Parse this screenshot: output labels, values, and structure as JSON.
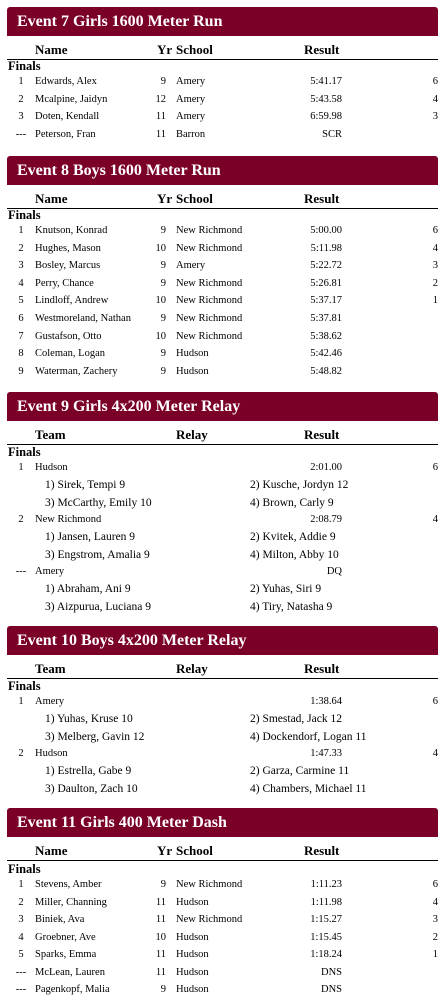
{
  "headers": {
    "name": "Name",
    "yr": "Yr",
    "school": "School",
    "result": "Result",
    "team": "Team",
    "relay": "Relay"
  },
  "finals_label": "Finals",
  "events": [
    {
      "title": "Event 7  Girls 1600 Meter Run",
      "rows": [
        {
          "place": "1",
          "name": "Edwards, Alex",
          "yr": "9",
          "school": "Amery",
          "result": "5:41.17",
          "points": "6"
        },
        {
          "place": "2",
          "name": "Mcalpine, Jaidyn",
          "yr": "12",
          "school": "Amery",
          "result": "5:43.58",
          "points": "4"
        },
        {
          "place": "3",
          "name": "Doten, Kendall",
          "yr": "11",
          "school": "Amery",
          "result": "6:59.98",
          "points": "3"
        },
        {
          "place": "---",
          "name": "Peterson, Fran",
          "yr": "11",
          "school": "Barron",
          "result": "SCR",
          "points": ""
        }
      ]
    },
    {
      "title": "Event 8  Boys 1600 Meter Run",
      "rows": [
        {
          "place": "1",
          "name": "Knutson, Konrad",
          "yr": "9",
          "school": "New Richmond",
          "result": "5:00.00",
          "points": "6"
        },
        {
          "place": "2",
          "name": "Hughes, Mason",
          "yr": "10",
          "school": "New Richmond",
          "result": "5:11.98",
          "points": "4"
        },
        {
          "place": "3",
          "name": "Bosley, Marcus",
          "yr": "9",
          "school": "Amery",
          "result": "5:22.72",
          "points": "3"
        },
        {
          "place": "4",
          "name": "Perry, Chance",
          "yr": "9",
          "school": "New Richmond",
          "result": "5:26.81",
          "points": "2"
        },
        {
          "place": "5",
          "name": "Lindloff, Andrew",
          "yr": "10",
          "school": "New Richmond",
          "result": "5:37.17",
          "points": "1"
        },
        {
          "place": "6",
          "name": "Westmoreland, Nathan",
          "yr": "9",
          "school": "New Richmond",
          "result": "5:37.81",
          "points": ""
        },
        {
          "place": "7",
          "name": "Gustafson, Otto",
          "yr": "10",
          "school": "New Richmond",
          "result": "5:38.62",
          "points": ""
        },
        {
          "place": "8",
          "name": "Coleman, Logan",
          "yr": "9",
          "school": "Hudson",
          "result": "5:42.46",
          "points": ""
        },
        {
          "place": "9",
          "name": "Waterman, Zachery",
          "yr": "9",
          "school": "Hudson",
          "result": "5:48.82",
          "points": ""
        }
      ]
    },
    {
      "title": "Event 9  Girls 4x200 Meter Relay",
      "relays": [
        {
          "place": "1",
          "team": "Hudson",
          "result": "2:01.00",
          "points": "6",
          "swimmers": [
            "1) Sirek, Tempi 9",
            "2) Kusche, Jordyn 12",
            "3) McCarthy, Emily 10",
            "4) Brown, Carly 9"
          ]
        },
        {
          "place": "2",
          "team": "New Richmond",
          "result": "2:08.79",
          "points": "4",
          "swimmers": [
            "1) Jansen, Lauren 9",
            "2) Kvitek, Addie 9",
            "3) Engstrom, Amalia 9",
            "4) Milton, Abby 10"
          ]
        },
        {
          "place": "---",
          "team": "Amery",
          "result": "DQ",
          "points": "",
          "swimmers": [
            "1) Abraham, Ani 9",
            "2) Yuhas, Siri 9",
            "3) Aizpurua, Luciana 9",
            "4) Tiry, Natasha 9"
          ]
        }
      ]
    },
    {
      "title": "Event 10  Boys 4x200 Meter Relay",
      "relays": [
        {
          "place": "1",
          "team": "Amery",
          "result": "1:38.64",
          "points": "6",
          "swimmers": [
            "1) Yuhas, Kruse 10",
            "2) Smestad, Jack 12",
            "3) Melberg, Gavin 12",
            "4) Dockendorf, Logan 11"
          ]
        },
        {
          "place": "2",
          "team": "Hudson",
          "result": "1:47.33",
          "points": "4",
          "swimmers": [
            "1) Estrella, Gabe 9",
            "2) Garza, Carmine 11",
            "3) Daulton, Zach 10",
            "4) Chambers, Michael 11"
          ]
        }
      ]
    },
    {
      "title": "Event 11  Girls 400 Meter Dash",
      "rows": [
        {
          "place": "1",
          "name": "Stevens, Amber",
          "yr": "9",
          "school": "New Richmond",
          "result": "1:11.23",
          "points": "6"
        },
        {
          "place": "2",
          "name": "Miller, Channing",
          "yr": "11",
          "school": "Hudson",
          "result": "1:11.98",
          "points": "4"
        },
        {
          "place": "3",
          "name": "Biniek, Ava",
          "yr": "11",
          "school": "New Richmond",
          "result": "1:15.27",
          "points": "3"
        },
        {
          "place": "4",
          "name": "Groebner, Ave",
          "yr": "10",
          "school": "Hudson",
          "result": "1:15.45",
          "points": "2"
        },
        {
          "place": "5",
          "name": "Sparks, Emma",
          "yr": "11",
          "school": "Hudson",
          "result": "1:18.24",
          "points": "1"
        },
        {
          "place": "---",
          "name": "McLean, Lauren",
          "yr": "11",
          "school": "Hudson",
          "result": "DNS",
          "points": ""
        },
        {
          "place": "---",
          "name": "Pagenkopf, Malia",
          "yr": "9",
          "school": "Hudson",
          "result": "DNS",
          "points": ""
        }
      ]
    }
  ]
}
